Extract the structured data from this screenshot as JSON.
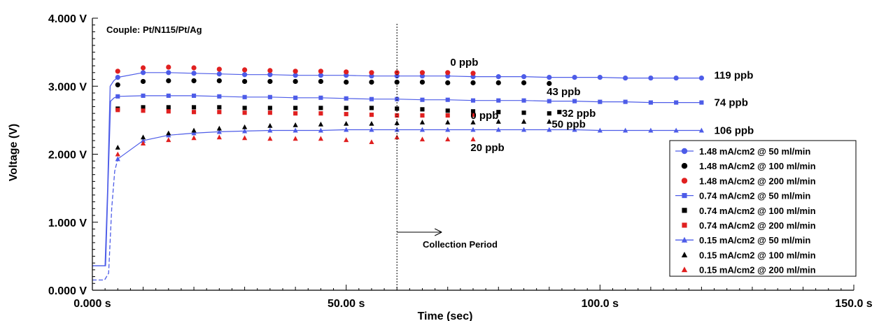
{
  "chart_data": {
    "type": "scatter",
    "title": "",
    "couple_label": "Couple: Pt/N115/Pt/Ag",
    "xlabel": "Time (sec)",
    "ylabel": "Voltage (V)",
    "xlim": [
      0,
      150
    ],
    "ylim": [
      0,
      4
    ],
    "x_ticks": [
      0,
      50,
      100,
      150
    ],
    "x_tick_labels": [
      "0.000 s",
      "50.00 s",
      "100.0 s",
      "150.0 s"
    ],
    "y_ticks": [
      0,
      1,
      2,
      3,
      4
    ],
    "y_tick_labels": [
      "0.000 V",
      "1.000 V",
      "2.000 V",
      "3.000 V",
      "4.000 V"
    ],
    "grid": false,
    "legend_position": "bottom-right",
    "collection_period_x": 60,
    "collection_period_label": "Collection Period",
    "annotations": [
      {
        "text": "0 ppb",
        "x": 70.5,
        "y": 3.35
      },
      {
        "text": "119 ppb",
        "x": 122.5,
        "y": 3.16
      },
      {
        "text": "43 ppb",
        "x": 89.5,
        "y": 2.92
      },
      {
        "text": "74 ppb",
        "x": 122.5,
        "y": 2.76
      },
      {
        "text": "0 ppb",
        "x": 74.5,
        "y": 2.57
      },
      {
        "text": "32 ppb",
        "x": 92.5,
        "y": 2.6
      },
      {
        "text": "50 ppb",
        "x": 90.5,
        "y": 2.44
      },
      {
        "text": "106 ppb",
        "x": 122.5,
        "y": 2.35
      },
      {
        "text": "20 ppb",
        "x": 74.5,
        "y": 2.1
      }
    ],
    "series": [
      {
        "name": "1.48 mA/cm2 @ 50 ml/min",
        "marker": "circle",
        "color": "#4d5ce8",
        "line": true,
        "x": [
          5,
          10,
          15,
          20,
          25,
          30,
          35,
          40,
          45,
          50,
          55,
          60,
          65,
          70,
          75,
          80,
          85,
          90,
          95,
          100,
          105,
          110,
          115,
          120
        ],
        "y": [
          3.13,
          3.2,
          3.2,
          3.19,
          3.18,
          3.17,
          3.17,
          3.16,
          3.16,
          3.16,
          3.15,
          3.15,
          3.15,
          3.15,
          3.14,
          3.14,
          3.14,
          3.13,
          3.13,
          3.13,
          3.12,
          3.12,
          3.12,
          3.12
        ]
      },
      {
        "name": "1.48 mA/cm2 @ 100 ml/min",
        "marker": "circle",
        "color": "#000000",
        "line": false,
        "x": [
          5,
          10,
          15,
          20,
          25,
          30,
          35,
          40,
          45,
          50,
          55,
          60,
          65,
          70,
          75,
          80,
          85,
          90
        ],
        "y": [
          3.02,
          3.07,
          3.08,
          3.08,
          3.08,
          3.07,
          3.07,
          3.07,
          3.07,
          3.06,
          3.06,
          3.06,
          3.06,
          3.05,
          3.05,
          3.05,
          3.05,
          3.04
        ]
      },
      {
        "name": "1.48 mA/cm2 @ 200 ml/min",
        "marker": "circle",
        "color": "#e02020",
        "line": false,
        "x": [
          5,
          10,
          15,
          20,
          25,
          30,
          35,
          40,
          45,
          50,
          55,
          60,
          65,
          70,
          75
        ],
        "y": [
          3.22,
          3.27,
          3.28,
          3.27,
          3.25,
          3.24,
          3.23,
          3.22,
          3.22,
          3.21,
          3.2,
          3.2,
          3.2,
          3.2,
          3.19
        ]
      },
      {
        "name": "0.74 mA/cm2 @ 50 ml/min",
        "marker": "square",
        "color": "#4d5ce8",
        "line": true,
        "x": [
          5,
          10,
          15,
          20,
          25,
          30,
          35,
          40,
          45,
          50,
          55,
          60,
          65,
          70,
          75,
          80,
          85,
          90,
          95,
          100,
          105,
          110,
          115,
          120
        ],
        "y": [
          2.85,
          2.86,
          2.86,
          2.86,
          2.85,
          2.84,
          2.84,
          2.83,
          2.83,
          2.82,
          2.81,
          2.81,
          2.8,
          2.8,
          2.79,
          2.79,
          2.79,
          2.78,
          2.78,
          2.77,
          2.77,
          2.76,
          2.76,
          2.76
        ]
      },
      {
        "name": "0.74 mA/cm2 @ 100 ml/min",
        "marker": "square",
        "color": "#000000",
        "line": false,
        "x": [
          5,
          10,
          15,
          20,
          25,
          30,
          35,
          40,
          45,
          50,
          55,
          60,
          65,
          70,
          75,
          80,
          85,
          90,
          92
        ],
        "y": [
          2.67,
          2.69,
          2.69,
          2.69,
          2.69,
          2.68,
          2.68,
          2.68,
          2.68,
          2.68,
          2.68,
          2.67,
          2.66,
          2.64,
          2.63,
          2.62,
          2.61,
          2.6,
          2.62
        ]
      },
      {
        "name": "0.74 mA/cm2 @ 200 ml/min",
        "marker": "square",
        "color": "#e02020",
        "line": false,
        "x": [
          5,
          10,
          15,
          20,
          25,
          30,
          35,
          40,
          45,
          50,
          55,
          60,
          65,
          70,
          75
        ],
        "y": [
          2.65,
          2.64,
          2.63,
          2.62,
          2.62,
          2.61,
          2.61,
          2.6,
          2.6,
          2.59,
          2.58,
          2.57,
          2.57,
          2.57,
          2.58
        ]
      },
      {
        "name": "0.15 mA/cm2 @ 50 ml/min",
        "marker": "triangle",
        "color": "#4d5ce8",
        "line": true,
        "x": [
          5,
          10,
          15,
          20,
          25,
          30,
          35,
          40,
          45,
          50,
          55,
          60,
          65,
          70,
          75,
          80,
          85,
          90,
          95,
          100,
          105,
          110,
          115,
          120
        ],
        "y": [
          1.93,
          2.2,
          2.28,
          2.31,
          2.33,
          2.34,
          2.35,
          2.35,
          2.35,
          2.36,
          2.36,
          2.36,
          2.36,
          2.36,
          2.36,
          2.36,
          2.36,
          2.36,
          2.36,
          2.35,
          2.35,
          2.35,
          2.35,
          2.35
        ]
      },
      {
        "name": "0.15 mA/cm2 @ 100 ml/min",
        "marker": "triangle",
        "color": "#000000",
        "line": false,
        "x": [
          5,
          10,
          15,
          20,
          25,
          30,
          35,
          40,
          45,
          50,
          55,
          60,
          65,
          70,
          75,
          80,
          85,
          90
        ],
        "y": [
          2.1,
          2.25,
          2.31,
          2.35,
          2.38,
          2.4,
          2.42,
          2.43,
          2.44,
          2.45,
          2.45,
          2.46,
          2.47,
          2.47,
          2.47,
          2.48,
          2.48,
          2.48
        ]
      },
      {
        "name": "0.15 mA/cm2 @ 200 ml/min",
        "marker": "triangle",
        "color": "#e02020",
        "line": false,
        "x": [
          5,
          10,
          15,
          20,
          25,
          30,
          35,
          40,
          45,
          50,
          55,
          60,
          65,
          70,
          75
        ],
        "y": [
          2.0,
          2.16,
          2.21,
          2.24,
          2.25,
          2.24,
          2.23,
          2.23,
          2.23,
          2.21,
          2.18,
          2.25,
          2.22,
          2.22,
          2.22
        ]
      }
    ]
  }
}
